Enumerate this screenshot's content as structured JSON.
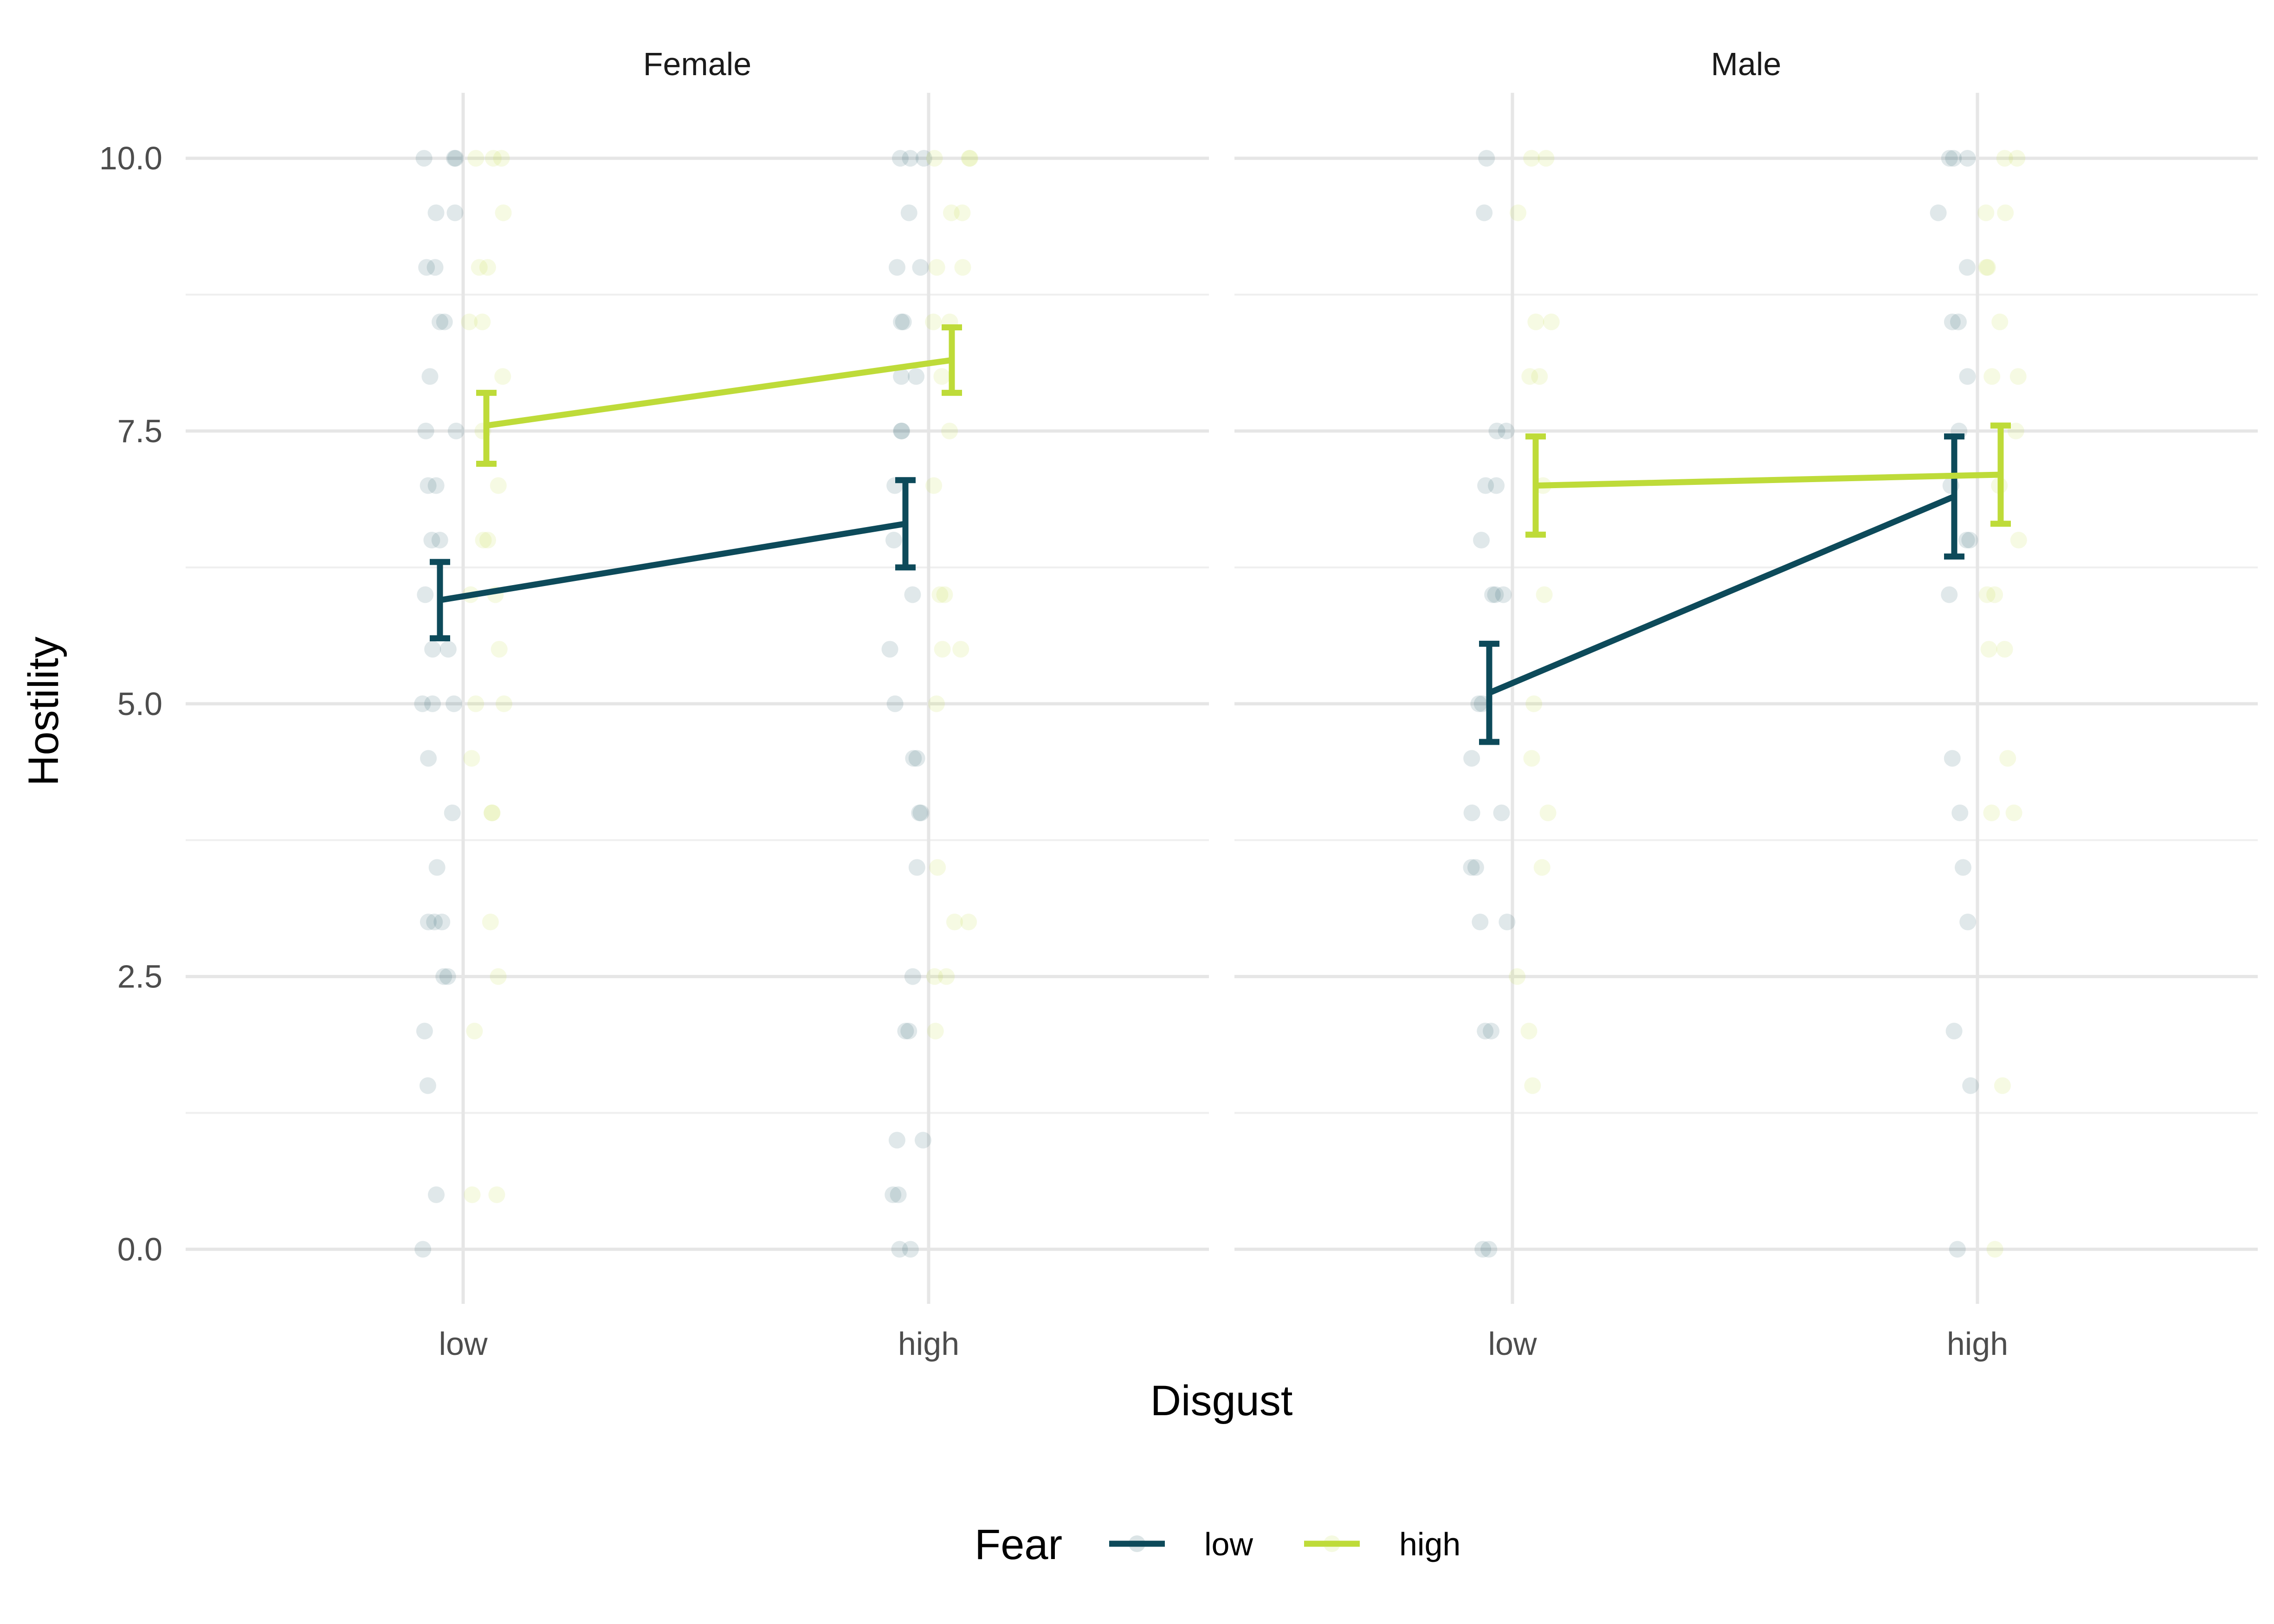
{
  "chart_data": {
    "type": "line",
    "facets": [
      "Female",
      "Male"
    ],
    "categories": [
      "low",
      "high"
    ],
    "xlabel": "Disgust",
    "ylabel": "Hostility",
    "ylim": [
      -0.5,
      10.6
    ],
    "yticks": [
      "0.0",
      "2.5",
      "5.0",
      "7.5",
      "10.0"
    ],
    "yticks_values": [
      0,
      2.5,
      5,
      7.5,
      10
    ],
    "grid": true,
    "legend": {
      "title": "Fear",
      "position": "bottom",
      "entries": [
        "low",
        "high"
      ]
    },
    "colors": {
      "low": "#0d4a5a",
      "high": "#bedb39"
    },
    "series": [
      {
        "name": "low",
        "facet": "Female",
        "means": [
          5.95,
          6.65
        ],
        "ci_low": [
          5.6,
          6.25
        ],
        "ci_high": [
          6.3,
          7.05
        ],
        "points": {
          "low": [
            10,
            10,
            10,
            9.5,
            9.5,
            9,
            9,
            8.5,
            8.5,
            8,
            7.5,
            7.5,
            7,
            7,
            6.5,
            6.5,
            6,
            5.5,
            5.5,
            5,
            5,
            5,
            4.5,
            4,
            3.5,
            3,
            3,
            3,
            2.5,
            2.5,
            2,
            1.5,
            0.5,
            0
          ],
          "high": [
            10,
            10,
            10,
            9.5,
            9,
            9,
            8.5,
            8.5,
            8,
            8,
            7.5,
            7.5,
            7,
            6.5,
            6,
            5.5,
            5,
            4.5,
            4.5,
            4,
            4,
            3.5,
            2.5,
            2,
            2,
            1,
            1,
            0.5,
            0.5,
            0,
            0
          ]
        }
      },
      {
        "name": "high",
        "facet": "Female",
        "means": [
          7.55,
          8.15
        ],
        "ci_low": [
          7.2,
          7.85
        ],
        "ci_high": [
          7.85,
          8.45
        ],
        "points": {
          "low": [
            10,
            10,
            10,
            9.5,
            9,
            9,
            8.5,
            8.5,
            8,
            7.5,
            7,
            6.5,
            6.5,
            6,
            6,
            5.5,
            5,
            5,
            4.5,
            4,
            4,
            3,
            2.5,
            2,
            0.5,
            0.5
          ],
          "high": [
            10,
            10,
            10,
            9.5,
            9.5,
            9,
            9,
            8.5,
            8.5,
            8,
            7.5,
            7,
            6,
            6,
            5.5,
            5.5,
            5,
            3.5,
            3,
            3,
            2.5,
            2.5,
            2
          ]
        }
      },
      {
        "name": "low",
        "facet": "Male",
        "means": [
          5.1,
          6.9
        ],
        "ci_low": [
          4.65,
          6.35
        ],
        "ci_high": [
          5.55,
          7.45
        ],
        "points": {
          "low": [
            10,
            9.5,
            7.5,
            7.5,
            7,
            7,
            6.5,
            6,
            6,
            6,
            5,
            5,
            4.5,
            4,
            4,
            3.5,
            3.5,
            3,
            3,
            2,
            2,
            0,
            0
          ],
          "high": [
            10,
            10,
            10,
            9.5,
            9,
            8.5,
            8.5,
            8,
            7.5,
            7,
            6.5,
            6.5,
            6,
            4.5,
            4,
            3.5,
            3,
            2,
            1.5,
            0
          ]
        }
      },
      {
        "name": "high",
        "facet": "Male",
        "means": [
          7.0,
          7.1
        ],
        "ci_low": [
          6.55,
          6.65
        ],
        "ci_high": [
          7.45,
          7.55
        ],
        "points": {
          "low": [
            10,
            10,
            9.5,
            8.5,
            8.5,
            8,
            8,
            7,
            6,
            5,
            4.5,
            4,
            3.5,
            2.5,
            2,
            1.5
          ],
          "high": [
            10,
            10,
            9.5,
            9.5,
            9,
            9,
            8.5,
            8,
            8,
            7.5,
            7,
            6.5,
            6,
            6,
            5.5,
            5.5,
            4.5,
            4,
            4,
            1.5,
            0
          ]
        }
      }
    ]
  }
}
